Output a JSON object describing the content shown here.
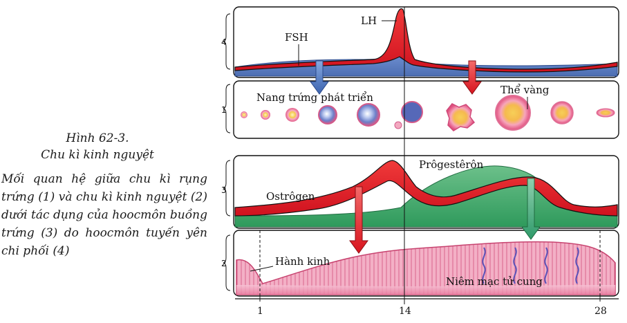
{
  "caption": {
    "title": "Hình 62-3.",
    "subtitle": "Chu kì kinh nguyệt",
    "description": "Mối quan hệ giữa chu kì rụng trứng (1) và chu kì kinh nguyệt (2) dưới tác dụng của hoocmôn buồng trứng (3) do hoocmôn tuyến yên chi phối (4)"
  },
  "panels": {
    "pituitary": {
      "row_label": "4",
      "fsh_label": "FSH",
      "lh_label": "LH"
    },
    "ovary": {
      "row_label": "1",
      "follicle_label": "Nang trứng phát triển",
      "corpus_luteum_label": "Thể vàng"
    },
    "ovarian_hormones": {
      "row_label": "3",
      "estrogen_label": "Ostrôgen",
      "progesterone_label": "Prôgestêrôn"
    },
    "uterus": {
      "row_label": "2",
      "menstruation_label": "Hành kinh",
      "endometrium_label": "Niêm mạc tử cung"
    }
  },
  "day_axis": {
    "ticks": [
      "1",
      "14",
      "28"
    ]
  },
  "colors": {
    "fsh": "#5b7fc0",
    "lh": "#e51f2b",
    "estrogen": "#e51f2b",
    "progesterone": "#3fa36a",
    "endometrium": "#f2a6c0"
  }
}
